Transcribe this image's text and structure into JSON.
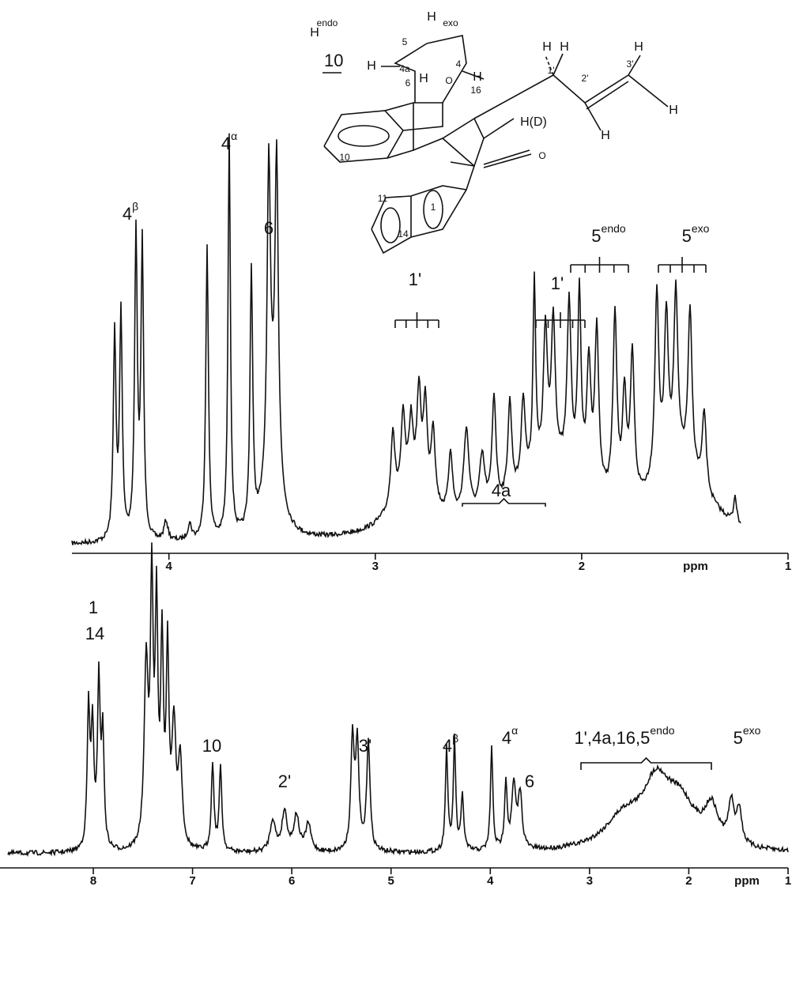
{
  "chart_data": [
    {
      "type": "spectrum",
      "x_label": "ppm",
      "xlim": [
        4.47,
        1
      ],
      "xticks": [
        4,
        3,
        2,
        1
      ],
      "annotations": [
        {
          "label": "4",
          "sup": "β"
        },
        {
          "label": "4",
          "sup": "α"
        },
        {
          "label": "6"
        },
        {
          "label": "1'"
        },
        {
          "label": "1'"
        },
        {
          "label": "5",
          "sup": "endo"
        },
        {
          "label": "5",
          "sup": "exo"
        },
        {
          "label": "4a"
        }
      ]
    },
    {
      "type": "spectrum",
      "x_label": "ppm",
      "xlim": [
        8.94,
        1
      ],
      "xticks": [
        8,
        7,
        6,
        5,
        4,
        3,
        2,
        1
      ],
      "annotations": [
        {
          "label": "1"
        },
        {
          "label": "14"
        },
        {
          "label": "10"
        },
        {
          "label": "2'"
        },
        {
          "label": "3'"
        },
        {
          "label": "4",
          "sup": "β"
        },
        {
          "label": "4",
          "sup": "α"
        },
        {
          "label": "6"
        },
        {
          "label": "1',4a,16,5",
          "sup": "endo"
        },
        {
          "label": "5",
          "sup": "exo"
        }
      ]
    }
  ],
  "structure": {
    "compound": "10",
    "labels": [
      "H",
      "endo",
      "5",
      "H",
      "exo",
      "4a",
      "H",
      "4",
      "O",
      "H",
      "6",
      "H",
      "16",
      "H",
      "H",
      "1'",
      "2'",
      "3'",
      "H",
      "H",
      "H",
      "H(D)",
      "O",
      "10",
      "11",
      "1",
      "14"
    ]
  }
}
